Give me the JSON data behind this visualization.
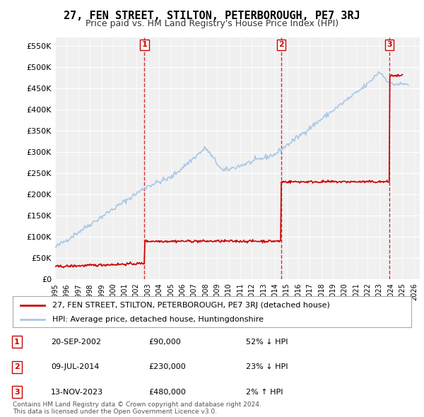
{
  "title": "27, FEN STREET, STILTON, PETERBOROUGH, PE7 3RJ",
  "subtitle": "Price paid vs. HM Land Registry's House Price Index (HPI)",
  "ylabel_ticks": [
    "£0",
    "£50K",
    "£100K",
    "£150K",
    "£200K",
    "£250K",
    "£300K",
    "£350K",
    "£400K",
    "£450K",
    "£500K",
    "£550K"
  ],
  "ytick_values": [
    0,
    50000,
    100000,
    150000,
    200000,
    250000,
    300000,
    350000,
    400000,
    450000,
    500000,
    550000
  ],
  "ylim": [
    0,
    570000
  ],
  "xlim_start": 1995.0,
  "xlim_end": 2026.5,
  "background_color": "#ffffff",
  "plot_bg_color": "#f0f0f0",
  "grid_color": "#ffffff",
  "hpi_color": "#a8c8e8",
  "price_color": "#cc0000",
  "marker_vline_color": "#cc0000",
  "purchases": [
    {
      "date_num": 2002.72,
      "price": 90000,
      "label": "1"
    },
    {
      "date_num": 2014.52,
      "price": 230000,
      "label": "2"
    },
    {
      "date_num": 2023.87,
      "price": 480000,
      "label": "3"
    }
  ],
  "legend_label_red": "27, FEN STREET, STILTON, PETERBOROUGH, PE7 3RJ (detached house)",
  "legend_label_blue": "HPI: Average price, detached house, Huntingdonshire",
  "table_rows": [
    {
      "num": "1",
      "date": "20-SEP-2002",
      "price": "£90,000",
      "hpi": "52% ↓ HPI"
    },
    {
      "num": "2",
      "date": "09-JUL-2014",
      "price": "£230,000",
      "hpi": "23% ↓ HPI"
    },
    {
      "num": "3",
      "date": "13-NOV-2023",
      "price": "£480,000",
      "hpi": "2% ↑ HPI"
    }
  ],
  "footer": "Contains HM Land Registry data © Crown copyright and database right 2024.\nThis data is licensed under the Open Government Licence v3.0.",
  "xtick_years": [
    1995,
    1996,
    1997,
    1998,
    1999,
    2000,
    2001,
    2002,
    2003,
    2004,
    2005,
    2006,
    2007,
    2008,
    2009,
    2010,
    2011,
    2012,
    2013,
    2014,
    2015,
    2016,
    2017,
    2018,
    2019,
    2020,
    2021,
    2022,
    2023,
    2024,
    2025,
    2026
  ]
}
